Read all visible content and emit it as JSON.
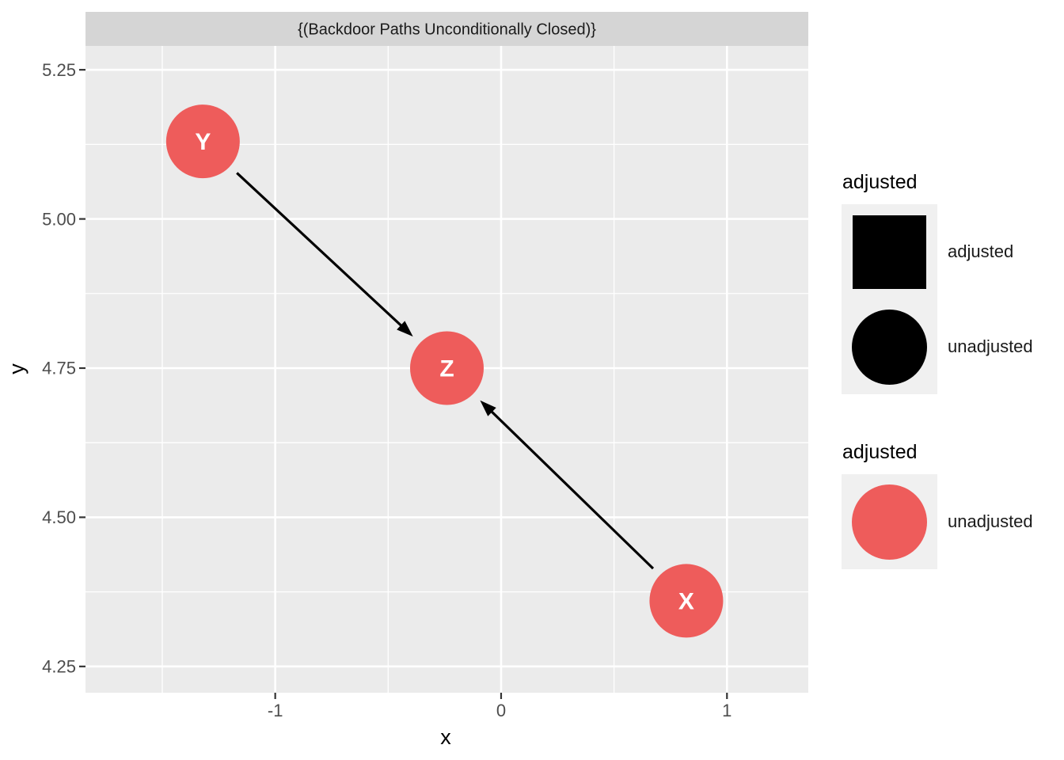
{
  "chart_data": {
    "type": "scatter",
    "subtype": "dag",
    "title": "{(Backdoor Paths Unconditionally Closed)}",
    "xlabel": "x",
    "ylabel": "y",
    "xlim": [
      -1.84,
      1.36
    ],
    "ylim": [
      4.206,
      5.29
    ],
    "grid": "on",
    "legend_position": "right",
    "x_ticks": {
      "values": [
        -1,
        0,
        1
      ],
      "labels": [
        "-1",
        "0",
        "1"
      ]
    },
    "y_ticks": {
      "values": [
        5.25,
        5.0,
        4.75,
        4.5,
        4.25
      ],
      "labels": [
        "5.25",
        "5.00",
        "4.75",
        "4.50",
        "4.25"
      ]
    },
    "x_minor_ticks": [
      -1.5,
      -0.5,
      0.5
    ],
    "y_minor_ticks": [
      5.125,
      4.875,
      4.625,
      4.375
    ],
    "nodes": [
      {
        "name": "Y",
        "x": -1.32,
        "y": 5.13,
        "adjusted": "unadjusted"
      },
      {
        "name": "Z",
        "x": -0.24,
        "y": 4.75,
        "adjusted": "unadjusted"
      },
      {
        "name": "X",
        "x": 0.82,
        "y": 4.36,
        "adjusted": "unadjusted"
      }
    ],
    "edges": [
      {
        "from": "Y",
        "to": "Z"
      },
      {
        "from": "X",
        "to": "Z"
      }
    ],
    "legends": [
      {
        "title": "adjusted",
        "entries": [
          {
            "label": "adjusted",
            "symbol": "square",
            "color": "#000000"
          },
          {
            "label": "unadjusted",
            "symbol": "circle",
            "color": "#000000"
          }
        ]
      },
      {
        "title": "adjusted",
        "entries": [
          {
            "label": "unadjusted",
            "symbol": "circle",
            "color": "#EE5C5B"
          }
        ]
      }
    ],
    "colors": {
      "node_fill": "#EE5C5B",
      "node_label": "#FFFFFF",
      "edge": "#000000",
      "panel_bg": "#EBEBEB",
      "strip_bg": "#D5D5D5",
      "grid": "#FFFFFF",
      "tick_text": "#4D4D4D",
      "tick_mark": "#333333",
      "axis_title": "#000000",
      "strip_text": "#1A1A1A",
      "legend_key_bg": "#F0F0F0",
      "figure_bg": "#FFFFFF"
    }
  }
}
